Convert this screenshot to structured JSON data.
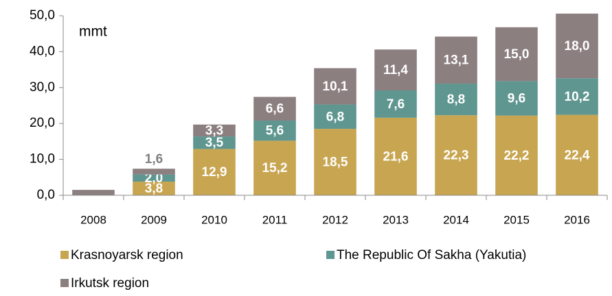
{
  "chart_data": {
    "type": "stacked_bar",
    "y_label": "mmt",
    "categories": [
      "2008",
      "2009",
      "2010",
      "2011",
      "2012",
      "2013",
      "2014",
      "2015",
      "2016"
    ],
    "series": [
      {
        "name": "Krasnoyarsk region",
        "color": "#c8a550",
        "values": [
          0,
          3.8,
          12.9,
          15.2,
          18.5,
          21.6,
          22.3,
          22.2,
          22.4
        ],
        "value_labels": [
          null,
          "3,8",
          "12,9",
          "15,2",
          "18,5",
          "21,6",
          "22,3",
          "22,2",
          "22,4"
        ]
      },
      {
        "name": "The Republic Of Sakha (Yakutia)",
        "color": "#5f9690",
        "values": [
          0,
          2.0,
          3.5,
          5.6,
          6.8,
          7.6,
          8.8,
          9.6,
          10.2
        ],
        "value_labels": [
          null,
          "2,0",
          "3,5",
          "5,6",
          "6,8",
          "7,6",
          "8,8",
          "9,6",
          "10,2"
        ]
      },
      {
        "name": "Irkutsk region",
        "color": "#8c7f80",
        "values": [
          1.5,
          1.6,
          3.3,
          6.6,
          10.1,
          11.4,
          13.1,
          15.0,
          18.0
        ],
        "value_labels": [
          null,
          "1,6",
          "3,3",
          "6,6",
          "10,1",
          "11,4",
          "13,1",
          "15,0",
          "18,0"
        ]
      }
    ],
    "ylim": [
      0,
      50
    ],
    "yticks": [
      {
        "value": 0,
        "label": "0,0"
      },
      {
        "value": 10,
        "label": "10,0"
      },
      {
        "value": 20,
        "label": "20,0"
      },
      {
        "value": 30,
        "label": "30,0"
      },
      {
        "value": 40,
        "label": "40,0"
      },
      {
        "value": 50,
        "label": "50,0"
      }
    ],
    "grid": false,
    "legend": "bottom"
  }
}
